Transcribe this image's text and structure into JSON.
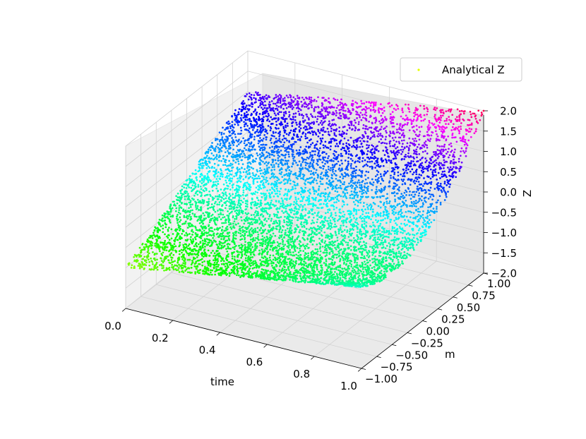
{
  "chart_data": {
    "type": "scatter",
    "projection": "3d",
    "xlabel": "time",
    "ylabel": "m",
    "zlabel": "Z",
    "xlim": [
      0,
      1
    ],
    "ylim": [
      -1,
      1
    ],
    "zlim": [
      -2,
      2
    ],
    "x_ticks": [
      0.0,
      0.2,
      0.4,
      0.6,
      0.8,
      1.0
    ],
    "x_tick_labels": [
      "0.0",
      "0.2",
      "0.4",
      "0.6",
      "0.8",
      "1.0"
    ],
    "y_ticks": [
      -1.0,
      -0.75,
      -0.5,
      -0.25,
      0.0,
      0.25,
      0.5,
      0.75,
      1.0
    ],
    "y_tick_labels": [
      "−1.00",
      "−0.75",
      "−0.50",
      "−0.25",
      "0.00",
      "0.25",
      "0.50",
      "0.75",
      "1.00"
    ],
    "z_ticks": [
      -2.0,
      -1.5,
      -1.0,
      -0.5,
      0.0,
      0.5,
      1.0,
      1.5,
      2.0
    ],
    "z_tick_labels": [
      "−2.0",
      "−1.5",
      "−1.0",
      "−0.5",
      "0.0",
      "0.5",
      "1.0",
      "1.5",
      "2.0"
    ],
    "grid": true,
    "legend_position": "top-right",
    "colormap": "hsv",
    "surface": "Z = m + m^2 * time (points sampled over time in [0,1], m in [-1,1])",
    "series": [
      {
        "name": "Analytical Z",
        "marker_color": "#e5ff00",
        "points": [
          [
            0.05,
            -0.95,
            -0.9
          ],
          [
            0.1,
            -0.8,
            -0.74
          ],
          [
            0.2,
            -0.9,
            -0.74
          ],
          [
            0.3,
            -0.7,
            -0.55
          ],
          [
            0.45,
            -0.95,
            -0.54
          ],
          [
            0.6,
            -0.6,
            -0.38
          ],
          [
            0.7,
            -0.85,
            -0.34
          ],
          [
            0.9,
            -0.75,
            -0.24
          ],
          [
            0.95,
            -0.95,
            -0.09
          ],
          [
            0.15,
            -0.5,
            -0.46
          ],
          [
            0.35,
            -0.4,
            -0.34
          ],
          [
            0.55,
            -0.3,
            -0.25
          ],
          [
            0.8,
            -0.45,
            -0.29
          ],
          [
            1.0,
            -0.2,
            -0.16
          ],
          [
            0.25,
            -0.15,
            -0.14
          ],
          [
            0.65,
            0.0,
            0.0
          ],
          [
            0.4,
            0.1,
            0.1
          ],
          [
            0.85,
            0.2,
            0.23
          ],
          [
            0.05,
            0.3,
            0.3
          ],
          [
            0.3,
            0.45,
            0.51
          ],
          [
            0.5,
            0.6,
            0.78
          ],
          [
            0.75,
            0.55,
            0.78
          ],
          [
            0.95,
            0.7,
            1.17
          ],
          [
            0.15,
            0.75,
            0.83
          ],
          [
            0.45,
            0.85,
            1.18
          ],
          [
            0.7,
            0.9,
            1.47
          ],
          [
            0.9,
            0.95,
            1.76
          ],
          [
            1.0,
            1.0,
            2.0
          ],
          [
            0.2,
            0.95,
            1.13
          ],
          [
            0.6,
            1.0,
            1.6
          ]
        ]
      }
    ]
  }
}
